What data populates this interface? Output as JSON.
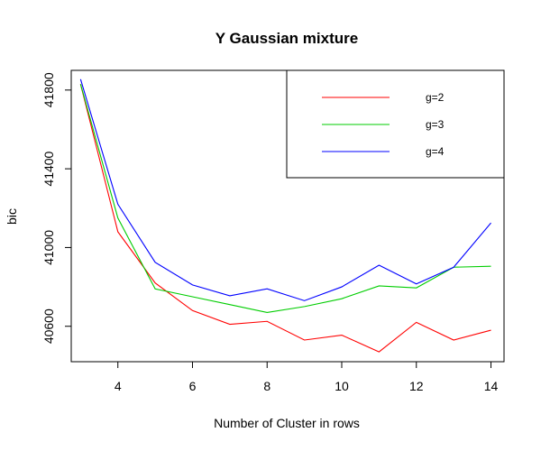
{
  "chart_data": {
    "type": "line",
    "title": "Y Gaussian mixture",
    "xlabel": "Number of Cluster in rows",
    "ylabel": "bic",
    "x": [
      3,
      4,
      5,
      6,
      7,
      8,
      9,
      10,
      11,
      12,
      13,
      14
    ],
    "xlim": [
      2.75,
      14.35
    ],
    "ylim": [
      40420,
      41900
    ],
    "xticks": [
      4,
      6,
      8,
      10,
      12,
      14
    ],
    "yticks": [
      40600,
      41000,
      41400,
      41800
    ],
    "grid": false,
    "legend_position": "top-right",
    "series": [
      {
        "name": "g=2",
        "color": "#ff0000",
        "values": [
          41830,
          41080,
          40820,
          40680,
          40610,
          40625,
          40530,
          40555,
          40470,
          40620,
          40530,
          40580
        ]
      },
      {
        "name": "g=3",
        "color": "#00cd00",
        "values": [
          41830,
          41150,
          40790,
          40750,
          40710,
          40670,
          40700,
          40740,
          40805,
          40795,
          40900,
          40905
        ]
      },
      {
        "name": "g=4",
        "color": "#0000ff",
        "values": [
          41855,
          41220,
          40925,
          40810,
          40755,
          40790,
          40730,
          40800,
          40910,
          40815,
          40900,
          41125
        ]
      }
    ]
  }
}
